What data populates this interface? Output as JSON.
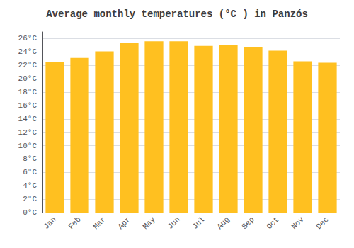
{
  "chart_data": {
    "type": "bar",
    "title": "Average monthly temperatures (°C ) in Panzós",
    "categories": [
      "Jan",
      "Feb",
      "Mar",
      "Apr",
      "May",
      "Jun",
      "Jul",
      "Aug",
      "Sep",
      "Oct",
      "Nov",
      "Dec"
    ],
    "values": [
      22.5,
      23.1,
      24.1,
      25.3,
      25.6,
      25.6,
      24.9,
      25.0,
      24.7,
      24.2,
      22.6,
      22.4
    ],
    "color": "#FFC020",
    "ylim": [
      0,
      27
    ],
    "yticks": [
      {
        "value": 0,
        "label": "0°C"
      },
      {
        "value": 2,
        "label": "2°C"
      },
      {
        "value": 4,
        "label": "4°C"
      },
      {
        "value": 6,
        "label": "6°C"
      },
      {
        "value": 8,
        "label": "8°C"
      },
      {
        "value": 10,
        "label": "10°C"
      },
      {
        "value": 12,
        "label": "12°C"
      },
      {
        "value": 14,
        "label": "14°C"
      },
      {
        "value": 16,
        "label": "16°C"
      },
      {
        "value": 18,
        "label": "18°C"
      },
      {
        "value": 20,
        "label": "20°C"
      },
      {
        "value": 22,
        "label": "22°C"
      },
      {
        "value": 24,
        "label": "24°C"
      },
      {
        "value": 26,
        "label": "26°C"
      }
    ],
    "grid": true
  }
}
